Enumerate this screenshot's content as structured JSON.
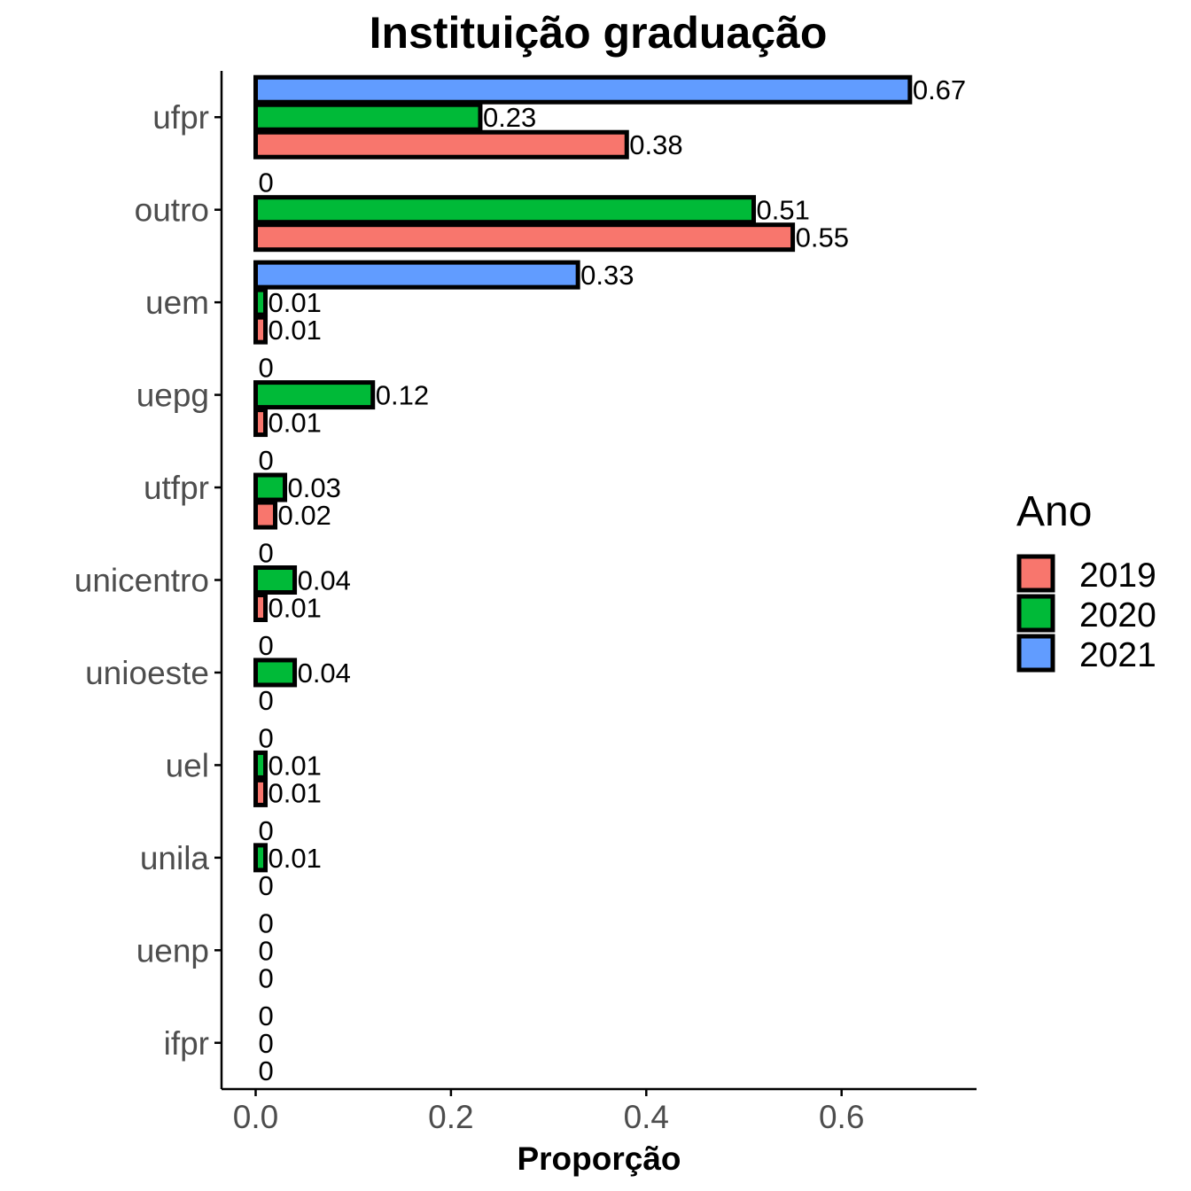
{
  "chart_data": {
    "type": "bar",
    "orientation": "horizontal",
    "title": "Instituição graduação",
    "xlabel": "Proporção",
    "ylabel": "",
    "xlim": [
      -0.055,
      0.73
    ],
    "x_ticks": [
      0.0,
      0.2,
      0.4,
      0.6
    ],
    "x_tick_labels": [
      "0.0",
      "0.2",
      "0.4",
      "0.6"
    ],
    "grid": false,
    "categories": [
      "ufpr",
      "outro",
      "uem",
      "uepg",
      "utfpr",
      "unicentro",
      "unioeste",
      "uel",
      "unila",
      "uenp",
      "ifpr"
    ],
    "series": [
      {
        "name": "2019",
        "color": "#F8766D",
        "values": [
          0.38,
          0.55,
          0.01,
          0.01,
          0.02,
          0.01,
          0,
          0.01,
          0,
          0,
          0
        ],
        "labels": [
          "0.38",
          "0.55",
          "0.01",
          "0.01",
          "0.02",
          "0.01",
          "0",
          "0.01",
          "0",
          "0",
          "0"
        ]
      },
      {
        "name": "2020",
        "color": "#00BA38",
        "values": [
          0.23,
          0.51,
          0.01,
          0.12,
          0.03,
          0.04,
          0.04,
          0.01,
          0.01,
          0,
          0
        ],
        "labels": [
          "0.23",
          "0.51",
          "0.01",
          "0.12",
          "0.03",
          "0.04",
          "0.04",
          "0.01",
          "0.01",
          "0",
          "0"
        ]
      },
      {
        "name": "2021",
        "color": "#619CFF",
        "values": [
          0.67,
          0,
          0.33,
          0,
          0,
          0,
          0,
          0,
          0,
          0,
          0
        ],
        "labels": [
          "0.67",
          "0",
          "0.33",
          "0",
          "0",
          "0",
          "0",
          "0",
          "0",
          "0",
          "0"
        ]
      }
    ],
    "legend": {
      "title": "Ano",
      "position": "right",
      "entries": [
        {
          "label": "2019",
          "color": "#F8766D"
        },
        {
          "label": "2020",
          "color": "#00BA38"
        },
        {
          "label": "2021",
          "color": "#619CFF"
        }
      ]
    }
  }
}
